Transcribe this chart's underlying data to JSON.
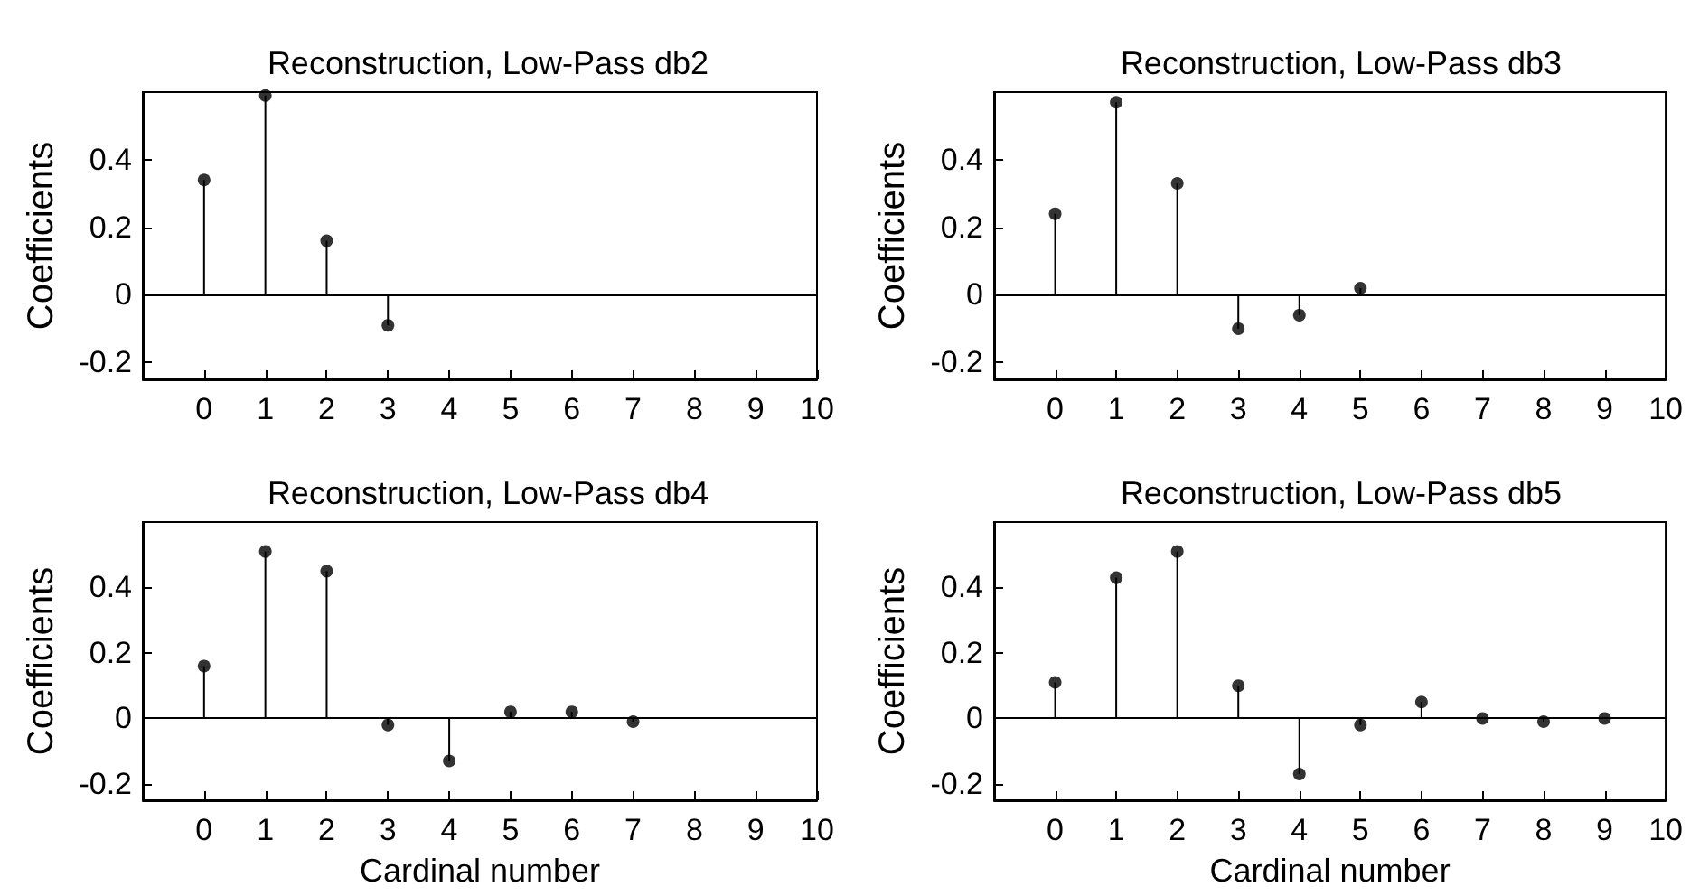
{
  "chart_data": [
    {
      "type": "lollipop",
      "title": "Reconstruction, Low-Pass db2",
      "ylabel": "Coefficients",
      "x": [
        0,
        1,
        2,
        3
      ],
      "values": [
        0.34,
        0.59,
        0.16,
        -0.09
      ],
      "color": "#000000",
      "marker": "circle",
      "xlim": [
        -1,
        10
      ],
      "xticks": [
        0,
        1,
        2,
        3,
        4,
        5,
        6,
        7,
        8,
        9,
        10
      ],
      "ylim": [
        -0.25,
        0.6
      ],
      "yticks": [
        -0.2,
        0,
        0.2,
        0.4
      ],
      "ref_lines": [
        {
          "axis": "y",
          "value": 0
        }
      ],
      "grid": false
    },
    {
      "type": "lollipop",
      "title": "Reconstruction, Low-Pass db3",
      "ylabel": "Coefficients",
      "x": [
        0,
        1,
        2,
        3,
        4,
        5
      ],
      "values": [
        0.24,
        0.57,
        0.33,
        -0.1,
        -0.06,
        0.02
      ],
      "color": "#000000",
      "marker": "circle",
      "xlim": [
        -1,
        10
      ],
      "xticks": [
        0,
        1,
        2,
        3,
        4,
        5,
        6,
        7,
        8,
        9,
        10
      ],
      "ylim": [
        -0.25,
        0.6
      ],
      "yticks": [
        -0.2,
        0,
        0.2,
        0.4
      ],
      "ref_lines": [
        {
          "axis": "y",
          "value": 0
        }
      ],
      "grid": false
    },
    {
      "type": "lollipop",
      "title": "Reconstruction, Low-Pass db4",
      "xlabel": "Cardinal number",
      "ylabel": "Coefficients",
      "x": [
        0,
        1,
        2,
        3,
        4,
        5,
        6,
        7
      ],
      "values": [
        0.16,
        0.51,
        0.45,
        -0.02,
        -0.13,
        0.02,
        0.02,
        -0.01
      ],
      "color": "#000000",
      "marker": "circle",
      "xlim": [
        -1,
        10
      ],
      "xticks": [
        0,
        1,
        2,
        3,
        4,
        5,
        6,
        7,
        8,
        9,
        10
      ],
      "ylim": [
        -0.25,
        0.6
      ],
      "yticks": [
        -0.2,
        0,
        0.2,
        0.4
      ],
      "ref_lines": [
        {
          "axis": "y",
          "value": 0
        }
      ],
      "grid": false
    },
    {
      "type": "lollipop",
      "title": "Reconstruction, Low-Pass db5",
      "xlabel": "Cardinal number",
      "ylabel": "Coefficients",
      "x": [
        0,
        1,
        2,
        3,
        4,
        5,
        6,
        7,
        8,
        9
      ],
      "values": [
        0.11,
        0.43,
        0.51,
        0.1,
        -0.17,
        -0.02,
        0.05,
        0,
        -0.01,
        0
      ],
      "color": "#000000",
      "marker": "circle",
      "xlim": [
        -1,
        10
      ],
      "xticks": [
        0,
        1,
        2,
        3,
        4,
        5,
        6,
        7,
        8,
        9,
        10
      ],
      "ylim": [
        -0.25,
        0.6
      ],
      "yticks": [
        -0.2,
        0,
        0.2,
        0.4
      ],
      "ref_lines": [
        {
          "axis": "y",
          "value": 0
        }
      ],
      "grid": false
    }
  ]
}
